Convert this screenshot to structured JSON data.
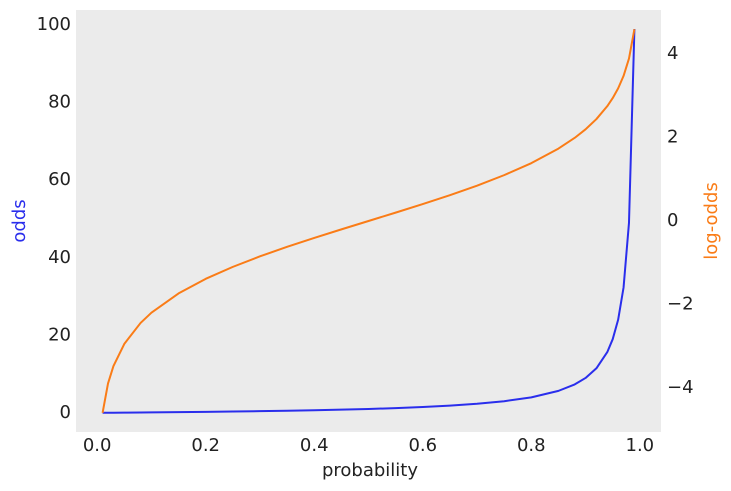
{
  "chart_data": {
    "type": "line",
    "xlabel": "probability",
    "ylabel": "odds",
    "y2label": "log-odds",
    "x": [
      0.01,
      0.02,
      0.03,
      0.05,
      0.08,
      0.1,
      0.15,
      0.2,
      0.25,
      0.3,
      0.35,
      0.4,
      0.45,
      0.5,
      0.55,
      0.6,
      0.65,
      0.7,
      0.75,
      0.8,
      0.85,
      0.88,
      0.9,
      0.92,
      0.94,
      0.95,
      0.96,
      0.97,
      0.98,
      0.99
    ],
    "series": [
      {
        "name": "odds",
        "color": "#2a2eec",
        "axis": "y",
        "values": [
          0.0101,
          0.0204,
          0.0309,
          0.0526,
          0.087,
          0.111,
          0.176,
          0.25,
          0.333,
          0.429,
          0.538,
          0.667,
          0.818,
          1,
          1.222,
          1.5,
          1.857,
          2.333,
          3,
          4,
          5.667,
          7.333,
          9,
          11.5,
          15.667,
          19,
          24,
          32.333,
          49,
          99
        ]
      },
      {
        "name": "log-odds",
        "color": "#fa7c17",
        "axis": "y2",
        "values": [
          -4.595,
          -3.892,
          -3.476,
          -2.944,
          -2.442,
          -2.197,
          -1.735,
          -1.386,
          -1.099,
          -0.847,
          -0.619,
          -0.405,
          -0.201,
          0,
          0.201,
          0.405,
          0.619,
          0.847,
          1.099,
          1.386,
          1.735,
          1.992,
          2.197,
          2.442,
          2.752,
          2.944,
          3.178,
          3.476,
          3.892,
          4.595
        ]
      }
    ],
    "xlim": [
      -0.039,
      1.039
    ],
    "xticks": [
      {
        "value": 0,
        "label": "0.0"
      },
      0.2,
      0.4,
      0.6,
      0.8,
      {
        "value": 1,
        "label": "1.0"
      }
    ],
    "ylim": [
      -4.94,
      103.9
    ],
    "yticks": [
      0,
      20,
      40,
      60,
      80,
      100
    ],
    "y2lim": [
      -5.055,
      5.055
    ],
    "y2ticks": [
      {
        "value": -4,
        "label": "−4"
      },
      {
        "value": -2,
        "label": "−2"
      },
      0,
      2,
      4
    ],
    "background": "#ebebeb",
    "grid": false
  }
}
